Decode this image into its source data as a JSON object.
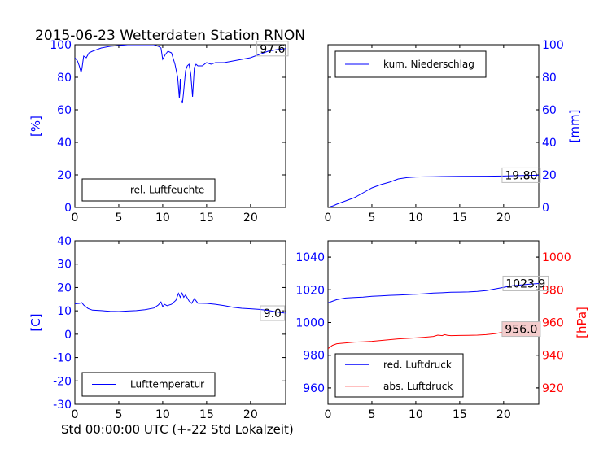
{
  "figure": {
    "title": "2015-06-23 Wetterdaten Station RNON",
    "xlabel": "Std 00:00:00 UTC (+-22 Std Lokalzeit)"
  },
  "colors": {
    "blue": "#0000ff",
    "red": "#ff0000",
    "axis": "#000000",
    "boxfill": "#f4cccc"
  },
  "chart_data": [
    {
      "type": "line",
      "ylabel": "[%]",
      "yaxis_side": "left",
      "xlim": [
        0,
        24
      ],
      "ylim": [
        0,
        100
      ],
      "xticks": [
        0,
        5,
        10,
        15,
        20
      ],
      "yticks": [
        0,
        20,
        40,
        60,
        80,
        100
      ],
      "legend": "lower-left",
      "series": [
        {
          "name": "rel. Luftfeuchte",
          "color": "#0000ff",
          "x": [
            0,
            0.3,
            0.5,
            0.7,
            0.8,
            1.0,
            1.3,
            1.6,
            2.0,
            2.5,
            3,
            4,
            5,
            6,
            7,
            8,
            9,
            9.5,
            9.8,
            10.0,
            10.3,
            10.6,
            11,
            11.4,
            11.7,
            11.9,
            12.0,
            12.1,
            12.25,
            12.4,
            12.6,
            12.8,
            13.0,
            13.2,
            13.4,
            13.6,
            13.8,
            14.0,
            14.5,
            15,
            15.5,
            16,
            17,
            18,
            19,
            20,
            21,
            22,
            23,
            24
          ],
          "y": [
            92,
            90,
            87,
            83,
            85,
            93,
            92,
            95,
            96,
            97,
            98,
            99,
            99.5,
            100,
            100,
            100,
            100,
            99,
            98,
            91,
            94,
            96,
            95,
            88,
            80,
            67,
            79,
            66,
            64,
            72,
            84,
            87,
            88,
            82,
            68,
            86,
            88,
            87,
            87,
            89,
            88,
            89,
            89,
            90,
            91,
            92,
            94,
            96,
            97,
            97.6
          ]
        }
      ],
      "annotations": [
        {
          "text": "97.6",
          "x": 22.5,
          "y": 97.6
        }
      ]
    },
    {
      "type": "line",
      "ylabel": "[mm]",
      "yaxis_side": "right",
      "xlim": [
        0,
        24
      ],
      "ylim": [
        0,
        100
      ],
      "xticks": [
        0,
        5,
        10,
        15,
        20
      ],
      "yticks": [
        0,
        20,
        40,
        60,
        80,
        100
      ],
      "legend": "upper-left",
      "series": [
        {
          "name": "kum. Niederschlag",
          "color": "#0000ff",
          "x": [
            0,
            0.3,
            0.6,
            1.0,
            1.5,
            2.0,
            3.0,
            4.0,
            5.0,
            6.0,
            7.0,
            7.5,
            8.0,
            9.0,
            10.0,
            11.0,
            12.0,
            13.0,
            15.0,
            18.0,
            20.0,
            22.0,
            24.0
          ],
          "y": [
            0,
            0.5,
            1,
            2,
            3,
            4,
            6,
            9,
            12,
            14,
            15.5,
            16.5,
            17.5,
            18.3,
            18.7,
            18.8,
            18.9,
            19.0,
            19.1,
            19.2,
            19.3,
            19.6,
            19.8
          ]
        }
      ],
      "annotations": [
        {
          "text": "19.80",
          "x": 22,
          "y": 19.8
        }
      ]
    },
    {
      "type": "line",
      "ylabel": "[C]",
      "yaxis_side": "left",
      "xlim": [
        0,
        24
      ],
      "ylim": [
        -30,
        40
      ],
      "xticks": [
        0,
        5,
        10,
        15,
        20
      ],
      "yticks": [
        -30,
        -20,
        -10,
        0,
        10,
        20,
        30,
        40
      ],
      "legend": "lower-left",
      "series": [
        {
          "name": "Lufttemperatur",
          "color": "#0000ff",
          "x": [
            0,
            0.5,
            0.8,
            1.0,
            1.5,
            2.0,
            3.0,
            4.0,
            5.0,
            6.0,
            7.0,
            8.0,
            9.0,
            9.5,
            9.8,
            10.0,
            10.2,
            10.5,
            11.0,
            11.5,
            11.8,
            12.0,
            12.2,
            12.4,
            12.6,
            13.0,
            13.3,
            13.6,
            14.0,
            15.0,
            16.0,
            17.0,
            18.0,
            19.0,
            20.0,
            21.0,
            22.0,
            23.0,
            24.0
          ],
          "y": [
            13,
            13.2,
            13.5,
            12.5,
            11,
            10.3,
            10.1,
            9.8,
            9.7,
            9.9,
            10.1,
            10.5,
            11.2,
            12.5,
            13.8,
            11.8,
            12.8,
            12.2,
            12.8,
            14.5,
            17.5,
            15.8,
            17.6,
            15.8,
            16.8,
            14.2,
            13.2,
            15.2,
            13.3,
            13.2,
            12.8,
            12.2,
            11.5,
            11.1,
            10.9,
            10.6,
            10.2,
            9.5,
            9.0
          ]
        }
      ],
      "annotations": [
        {
          "text": "9.0",
          "x": 22.5,
          "y": 9.0
        }
      ]
    },
    {
      "type": "line",
      "ylabel": "[hPa]",
      "yaxis_side": "dual",
      "xlim": [
        0,
        24
      ],
      "ylim_left": [
        950,
        1050
      ],
      "ylim_right": [
        910,
        1010
      ],
      "xticks": [
        0,
        5,
        10,
        15,
        20
      ],
      "yticks_left": [
        960,
        980,
        1000,
        1020,
        1040
      ],
      "yticks_right": [
        920,
        940,
        960,
        980,
        1000
      ],
      "legend": "lower-left",
      "series": [
        {
          "name": "red. Luftdruck",
          "color": "#0000ff",
          "axis": "left",
          "x": [
            0,
            0.5,
            1.0,
            1.5,
            2.0,
            3.0,
            4.0,
            5.0,
            6.0,
            7.0,
            8.0,
            9.0,
            10.0,
            11.0,
            12.0,
            13.0,
            14.0,
            15.0,
            16.0,
            17.0,
            18.0,
            19.0,
            20.0,
            21.0,
            22.0,
            23.0,
            24.0
          ],
          "y": [
            1012,
            1013,
            1014,
            1014.5,
            1015,
            1015.3,
            1015.5,
            1016,
            1016.3,
            1016.6,
            1016.8,
            1017,
            1017.3,
            1017.6,
            1018,
            1018.2,
            1018.5,
            1018.6,
            1018.7,
            1019,
            1019.5,
            1020.5,
            1021.5,
            1022.5,
            1023,
            1023.5,
            1023.9
          ]
        },
        {
          "name": "abs. Luftdruck",
          "color": "#ff0000",
          "axis": "right",
          "x": [
            0,
            0.5,
            1.0,
            2.0,
            3.0,
            4.0,
            5.0,
            6.0,
            7.0,
            8.0,
            9.0,
            10.0,
            11.0,
            12.0,
            12.5,
            13.0,
            13.3,
            13.6,
            14.0,
            15.0,
            16.0,
            17.0,
            18.0,
            19.0,
            20.0,
            21.0,
            22.0,
            23.0,
            24.0
          ],
          "y": [
            944,
            946,
            947,
            947.5,
            948,
            948.2,
            948.5,
            949,
            949.5,
            950,
            950.3,
            950.6,
            951,
            951.5,
            952.3,
            952,
            952.6,
            952.2,
            952,
            952.1,
            952.2,
            952.3,
            952.6,
            953.2,
            954.2,
            955,
            955.5,
            955.8,
            956.0
          ]
        }
      ],
      "annotations": [
        {
          "text": "1023.9",
          "x": 22.5,
          "y": 1023.9,
          "axis": "left"
        },
        {
          "text": "956.0",
          "x": 22,
          "y": 956.0,
          "axis": "right",
          "filled": true
        }
      ]
    }
  ]
}
